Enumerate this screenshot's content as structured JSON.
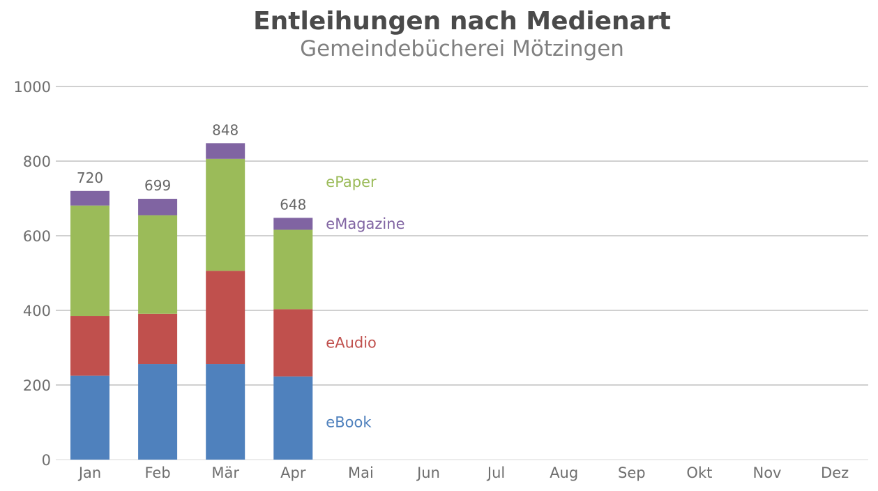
{
  "chart_data": {
    "type": "bar",
    "stacked": true,
    "title": "Entleihungen nach Medienart",
    "subtitle": "Gemeindebücherei Mötzingen",
    "categories": [
      "Jan",
      "Feb",
      "Mär",
      "Apr",
      "Mai",
      "Jun",
      "Jul",
      "Aug",
      "Sep",
      "Okt",
      "Nov",
      "Dez"
    ],
    "series": [
      {
        "name": "eBook",
        "color": "#4f81bd",
        "values": [
          225,
          256,
          256,
          223,
          null,
          null,
          null,
          null,
          null,
          null,
          null,
          null
        ]
      },
      {
        "name": "eAudio",
        "color": "#c0504d",
        "values": [
          160,
          135,
          250,
          180,
          null,
          null,
          null,
          null,
          null,
          null,
          null,
          null
        ]
      },
      {
        "name": "ePaper",
        "color": "#9bbb59",
        "values": [
          296,
          264,
          300,
          213,
          null,
          null,
          null,
          null,
          null,
          null,
          null,
          null
        ]
      },
      {
        "name": "eMagazine",
        "color": "#8064a2",
        "values": [
          39,
          44,
          42,
          32,
          null,
          null,
          null,
          null,
          null,
          null,
          null,
          null
        ]
      }
    ],
    "totals": [
      720,
      699,
      848,
      648,
      null,
      null,
      null,
      null,
      null,
      null,
      null,
      null
    ],
    "yticks": [
      0,
      200,
      400,
      600,
      800,
      1000
    ],
    "ylim": [
      0,
      1000
    ],
    "grid": true,
    "legend": "inline-right-of-last-bar"
  }
}
